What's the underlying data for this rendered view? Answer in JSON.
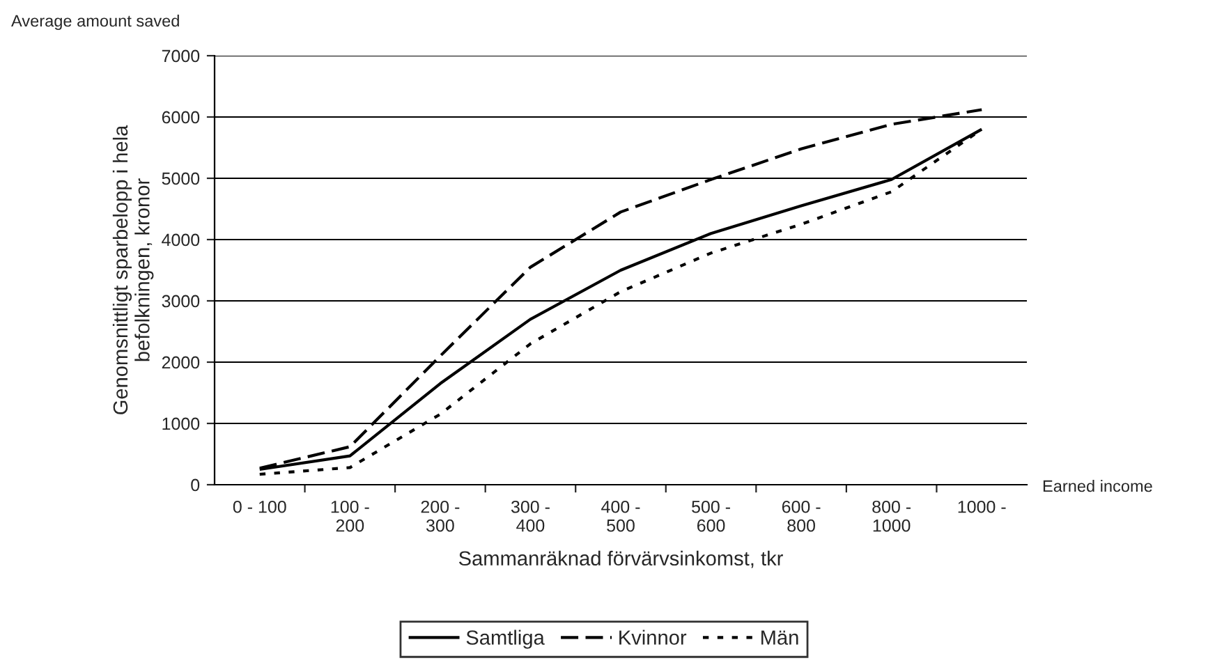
{
  "chart_data": {
    "type": "line",
    "xlabel": "Sammanräknad förvärvsinkomst, tkr",
    "ylabel": "Genomsnittligt sparbelopp i hela\nbefolkningen, kronor",
    "annotations": [
      "Average amount saved",
      "Earned income"
    ],
    "categories": [
      "0 - 100",
      "100 -\n200",
      "200 -\n300",
      "300 -\n400",
      "400 -\n500",
      "500 -\n600",
      "600 -\n800",
      "800 -\n1000",
      "1000 -"
    ],
    "series": [
      {
        "name": "Samtliga",
        "color": "#000000",
        "line_style": "solid",
        "values": [
          250,
          470,
          1650,
          2700,
          3500,
          4100,
          4550,
          4980,
          5800
        ]
      },
      {
        "name": "Kvinnor",
        "color": "#000000",
        "line_style": "dashed",
        "values": [
          270,
          620,
          2100,
          3550,
          4450,
          4980,
          5480,
          5880,
          6120
        ]
      },
      {
        "name": "Män",
        "color": "#000000",
        "line_style": "dotted",
        "values": [
          170,
          280,
          1150,
          2300,
          3150,
          3780,
          4250,
          4780,
          5800
        ]
      }
    ],
    "ylim": [
      0,
      7000
    ],
    "yticks": [
      0,
      1000,
      2000,
      3000,
      4000,
      5000,
      6000,
      7000
    ],
    "grid": "y",
    "legend": "bottom"
  }
}
